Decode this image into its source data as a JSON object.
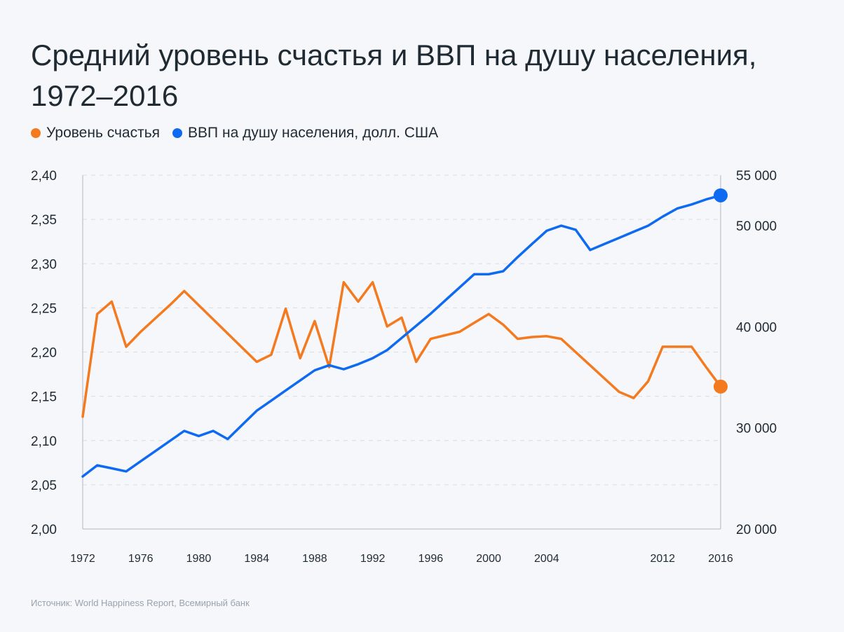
{
  "chart_data": {
    "type": "line",
    "title": "Средний уровень счастья и ВВП на душу населения, 1972–2016",
    "series": [
      {
        "name": "Уровень счастья",
        "axis": "left",
        "color": "#f47a1f",
        "x": [
          1972,
          1973,
          1974,
          1975,
          1976,
          1977,
          1978,
          1979,
          1980,
          1981,
          1982,
          1983,
          1984,
          1985,
          1986,
          1987,
          1988,
          1989,
          1990,
          1991,
          1992,
          1993,
          1994,
          1995,
          1996,
          1997,
          1998,
          1999,
          2000,
          2001,
          2002,
          2003,
          2004,
          2005,
          2006,
          2007,
          2008,
          2009,
          2010,
          2011,
          2012,
          2013,
          2014,
          2015,
          2016
        ],
        "values": [
          2.127,
          2.243,
          2.257,
          2.206,
          2.223,
          2.238,
          2.253,
          2.269,
          2.253,
          2.237,
          2.221,
          2.205,
          2.189,
          2.197,
          2.249,
          2.193,
          2.235,
          2.183,
          2.279,
          2.257,
          2.279,
          2.229,
          2.239,
          2.189,
          2.215,
          2.219,
          2.223,
          2.233,
          2.243,
          2.231,
          2.215,
          2.217,
          2.218,
          2.215,
          2.2,
          2.185,
          2.17,
          2.155,
          2.148,
          2.167,
          2.206,
          2.206,
          2.206,
          2.183,
          2.161
        ]
      },
      {
        "name": "ВВП на душу населения, долл. США",
        "axis": "right",
        "color": "#0f6af2",
        "x": [
          1972,
          1973,
          1974,
          1975,
          1976,
          1977,
          1978,
          1979,
          1980,
          1981,
          1982,
          1983,
          1984,
          1985,
          1986,
          1987,
          1988,
          1989,
          1990,
          1991,
          1992,
          1993,
          1994,
          1995,
          1996,
          1997,
          1998,
          1999,
          2000,
          2001,
          2002,
          2003,
          2004,
          2005,
          2006,
          2007,
          2008,
          2009,
          2010,
          2011,
          2012,
          2013,
          2014,
          2015,
          2016
        ],
        "values": [
          25200,
          26300,
          26000,
          25700,
          26700,
          27700,
          28700,
          29700,
          29200,
          29700,
          28900,
          30300,
          31700,
          32700,
          33700,
          34700,
          35700,
          36200,
          35800,
          36300,
          36900,
          37700,
          38900,
          40100,
          41300,
          42600,
          43900,
          45200,
          45200,
          45500,
          46900,
          48200,
          49500,
          50000,
          49600,
          47600,
          48200,
          48800,
          49400,
          50000,
          50900,
          51700,
          52100,
          52600,
          53000
        ]
      }
    ],
    "y_left": {
      "lim": [
        2.0,
        2.4
      ],
      "ticks": [
        "2,00",
        "2,05",
        "2,10",
        "2,15",
        "2,20",
        "2,25",
        "2,30",
        "2,35",
        "2,40"
      ]
    },
    "y_right": {
      "lim": [
        20000,
        55000
      ],
      "ticks": [
        {
          "value": 20000,
          "label": "20 000"
        },
        {
          "value": 30000,
          "label": "30 000"
        },
        {
          "value": 40000,
          "label": "40 000"
        },
        {
          "value": 50000,
          "label": "50 000"
        },
        {
          "value": 55000,
          "label": "55 000"
        }
      ]
    },
    "x_ticks": [
      "1972",
      "1976",
      "1980",
      "1984",
      "1988",
      "1992",
      "1996",
      "2000",
      "2004",
      "2012",
      "2016"
    ],
    "grid": true,
    "legend": "top-left"
  },
  "title": {
    "line1": "Средний уровень счастья и ВВП на душу населения,",
    "line2": "1972–2016"
  },
  "legend": {
    "happiness": "Уровень счастья",
    "gdp": "ВВП на душу населения, долл. США"
  },
  "colors": {
    "happiness": "#f47a1f",
    "gdp": "#0f6af2",
    "grid": "#d9dde3",
    "axis": "#c7ccd3"
  },
  "source": "Источник: World Happiness Report, Всемирный банк"
}
